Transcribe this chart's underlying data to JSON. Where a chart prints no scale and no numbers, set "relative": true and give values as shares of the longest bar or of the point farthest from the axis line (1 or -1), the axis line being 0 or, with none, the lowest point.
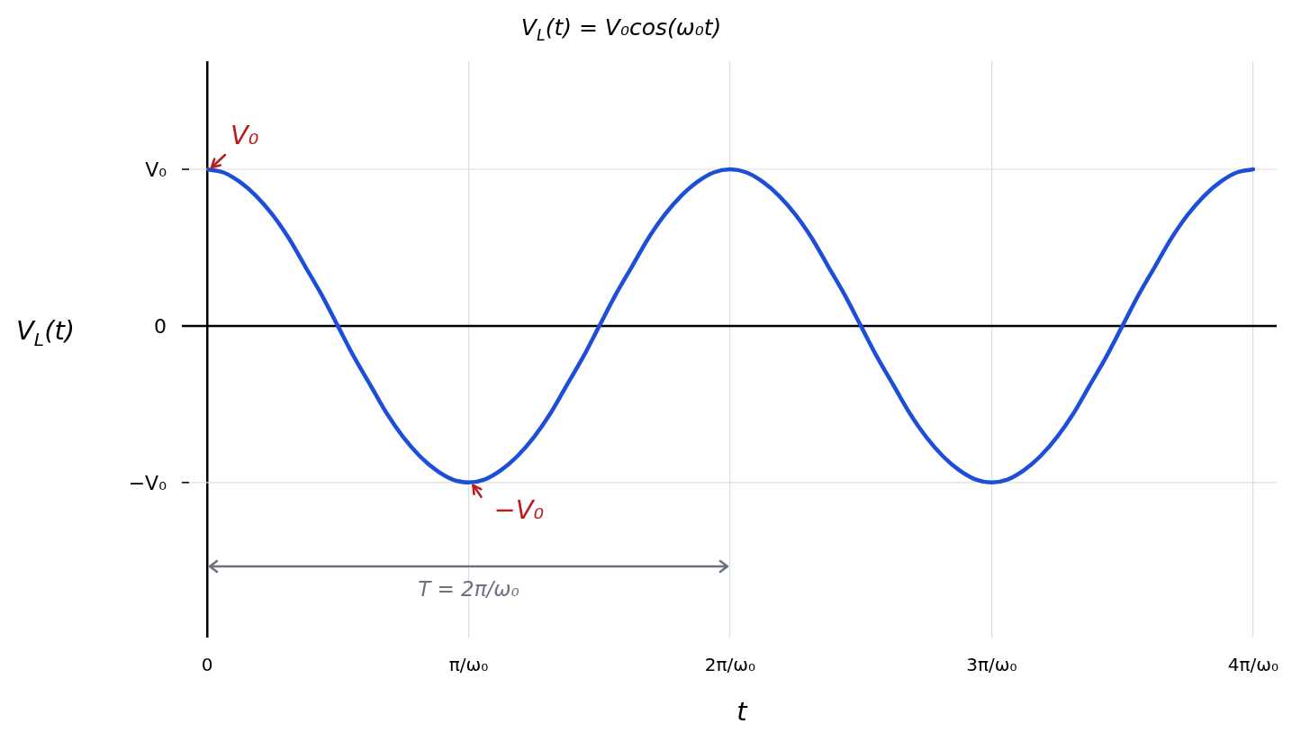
{
  "chart_data": {
    "type": "line",
    "title": "V$_{L}$(t) = V₀cos(ω₀t)",
    "xlabel": "t",
    "ylabel": "V$_{L}$(t)",
    "relative": true,
    "x": [
      0,
      0.0625,
      0.125,
      0.1875,
      0.25,
      0.3125,
      0.375,
      0.4375,
      0.5,
      0.5625,
      0.625,
      0.6875,
      0.75,
      0.8125,
      0.875,
      0.9375,
      1,
      1.0625,
      1.125,
      1.1875,
      1.25,
      1.3125,
      1.375,
      1.4375,
      1.5,
      1.5625,
      1.625,
      1.6875,
      1.75,
      1.8125,
      1.875,
      1.9375,
      2,
      2.0625,
      2.125,
      2.1875,
      2.25,
      2.3125,
      2.375,
      2.4375,
      2.5,
      2.5625,
      2.625,
      2.6875,
      2.75,
      2.8125,
      2.875,
      2.9375,
      3,
      3.0625,
      3.125,
      3.1875,
      3.25,
      3.3125,
      3.375,
      3.4375,
      3.5,
      3.5625,
      3.625,
      3.6875,
      3.75,
      3.8125,
      3.875,
      3.9375,
      4
    ],
    "series": [
      {
        "color": "#1c4ed8",
        "values": [
          1,
          0.98,
          0.92,
          0.83,
          0.71,
          0.56,
          0.38,
          0.2,
          0,
          -0.2,
          -0.38,
          -0.56,
          -0.71,
          -0.83,
          -0.92,
          -0.98,
          -1,
          -0.98,
          -0.92,
          -0.83,
          -0.71,
          -0.56,
          -0.38,
          -0.2,
          0,
          0.2,
          0.38,
          0.56,
          0.71,
          0.83,
          0.92,
          0.98,
          1,
          0.98,
          0.92,
          0.83,
          0.71,
          0.56,
          0.38,
          0.2,
          0,
          -0.2,
          -0.38,
          -0.56,
          -0.71,
          -0.83,
          -0.92,
          -0.98,
          -1,
          -0.98,
          -0.92,
          -0.83,
          -0.71,
          -0.56,
          -0.38,
          -0.2,
          0,
          0.2,
          0.38,
          0.56,
          0.71,
          0.83,
          0.92,
          0.98,
          1
        ]
      }
    ],
    "xlim": [
      0,
      4.09
    ],
    "xticks": [
      0,
      {
        "value": 1,
        "label": "π/ω₀"
      },
      {
        "value": 2,
        "label": "2π/ω₀"
      },
      {
        "value": 3,
        "label": "3π/ω₀"
      },
      {
        "value": 4,
        "label": "4π/ω₀"
      }
    ],
    "annotations": [
      {
        "text": "V₀",
        "x": 0,
        "y": 1
      },
      {
        "text": "−V₀",
        "x": 1,
        "y": -1
      },
      "T = 2π/ω₀",
      "V₀",
      "0",
      "−V₀"
    ],
    "grid": true,
    "legend": false,
    "marker": "none",
    "line_style": "solid"
  }
}
